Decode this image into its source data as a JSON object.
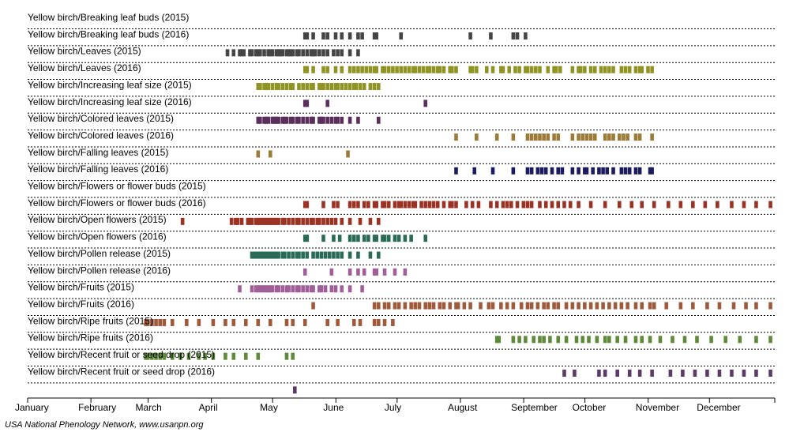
{
  "footer": "USA National Phenology Network, www.usanpn.org",
  "chart_data": {
    "type": "timeline",
    "x_unit": "day of year",
    "xlim": [
      1,
      366
    ],
    "months": [
      "January",
      "February",
      "March",
      "April",
      "May",
      "June",
      "July",
      "August",
      "September",
      "October",
      "November",
      "December"
    ],
    "rows": [
      {
        "label": "Yellow birch/Breaking leaf buds (2015)",
        "color": "#454545",
        "days": [
          136,
          137,
          140,
          145,
          147,
          151,
          154,
          158,
          162,
          164,
          170,
          171,
          183,
          217,
          227,
          238,
          240,
          244
        ]
      },
      {
        "label": "Yellow birch/Breaking leaf buds (2016)",
        "color": "#454545",
        "days": [
          98,
          101,
          104,
          105,
          106,
          109,
          110,
          112,
          113,
          114,
          116,
          118,
          119,
          120,
          122,
          123,
          124,
          125,
          127,
          128,
          129,
          130,
          132,
          133,
          135,
          137,
          139,
          140,
          141,
          143,
          145,
          147,
          150,
          152,
          154,
          158,
          162
        ]
      },
      {
        "label": "Yellow birch/Leaves (2015)",
        "color": "#8f9425",
        "days": [
          136,
          137,
          140,
          145,
          147,
          151,
          154,
          158,
          160,
          162,
          164,
          166,
          168,
          170,
          171,
          174,
          175,
          177,
          179,
          181,
          183,
          185,
          187,
          189,
          190,
          192,
          194,
          196,
          197,
          199,
          201,
          202,
          204,
          207,
          208,
          210,
          217,
          218,
          220,
          225,
          228,
          232,
          233,
          236,
          239,
          241,
          244,
          245,
          247,
          249,
          251,
          255,
          258,
          259,
          261,
          267,
          270,
          271,
          273,
          276,
          278,
          281,
          283,
          285,
          287,
          291,
          293,
          295,
          298,
          300,
          301,
          304,
          306
        ]
      },
      {
        "label": "Yellow birch/Leaves (2016)",
        "color": "#8f9425",
        "days": [
          113,
          114,
          116,
          117,
          118,
          120,
          122,
          123,
          125,
          127,
          129,
          130,
          133,
          135,
          137,
          139,
          140,
          143,
          144,
          145,
          147,
          149,
          151,
          152,
          154,
          156,
          158,
          160,
          161,
          163,
          165,
          168,
          170,
          172
        ]
      },
      {
        "label": "Yellow birch/Increasing leaf size (2015)",
        "color": "#5a2f5a",
        "days": [
          136,
          137,
          147,
          195
        ]
      },
      {
        "label": "Yellow birch/Increasing leaf size (2016)",
        "color": "#5a2f5a",
        "days": [
          113,
          114,
          116,
          117,
          118,
          120,
          121,
          122,
          123,
          125,
          126,
          127,
          129,
          130,
          132,
          133,
          135,
          137,
          139,
          140,
          143,
          144,
          145,
          147,
          149,
          151,
          152,
          154,
          158,
          162,
          172
        ]
      },
      {
        "label": "Yellow birch/Colored leaves (2015)",
        "color": "#9c7b38",
        "days": [
          210,
          220,
          230,
          238,
          245,
          247,
          249,
          251,
          253,
          255,
          258,
          260,
          267,
          270,
          272,
          274,
          276,
          278,
          283,
          285,
          287,
          290,
          292,
          294,
          298,
          300,
          306
        ]
      },
      {
        "label": "Yellow birch/Colored leaves (2016)",
        "color": "#9c7b38",
        "days": [
          113,
          119,
          157
        ]
      },
      {
        "label": "Yellow birch/Falling leaves (2015)",
        "color": "#1c1c5c",
        "days": [
          210,
          219,
          228,
          238,
          245,
          247,
          250,
          252,
          254,
          257,
          260,
          262,
          267,
          270,
          273,
          274,
          277,
          280,
          282,
          284,
          287,
          291,
          293,
          295,
          298,
          300,
          305,
          306
        ]
      },
      {
        "label": "Yellow birch/Falling leaves (2016)",
        "color": "#1c1c5c",
        "days": []
      },
      {
        "label": "Yellow birch/Flowers or flower buds (2015)",
        "color": "#9b3324",
        "days": [
          136,
          137,
          145,
          150,
          152,
          158,
          160,
          162,
          165,
          167,
          170,
          171,
          174,
          175,
          177,
          180,
          182,
          183,
          185,
          187,
          189,
          190,
          193,
          195,
          197,
          199,
          201,
          204,
          207,
          208,
          210,
          215,
          218,
          221,
          227,
          230,
          233,
          235,
          237,
          240,
          243,
          245,
          247,
          251,
          254,
          257,
          260,
          263,
          266,
          270,
          276,
          283,
          290,
          296,
          301,
          307,
          314,
          320,
          326,
          332,
          338,
          345,
          351,
          357,
          364
        ]
      },
      {
        "label": "Yellow birch/Flowers or flower buds (2016)",
        "color": "#9b3324",
        "days": [
          76,
          100,
          102,
          103,
          105,
          108,
          109,
          110,
          112,
          113,
          114,
          115,
          116,
          117,
          118,
          119,
          120,
          121,
          122,
          123,
          125,
          126,
          128,
          130,
          132,
          133,
          135,
          137,
          139,
          140,
          142,
          143,
          145,
          147,
          149,
          151,
          154,
          158,
          163,
          168,
          172
        ]
      },
      {
        "label": "Yellow birch/Open flowers (2015)",
        "color": "#2a6b57",
        "days": [
          136,
          137,
          145,
          150,
          153,
          158,
          160,
          162,
          165,
          167,
          170,
          171,
          174,
          175,
          177,
          180,
          182,
          185,
          188,
          195
        ]
      },
      {
        "label": "Yellow birch/Open flowers (2016)",
        "color": "#2a6b57",
        "days": [
          110,
          111,
          112,
          113,
          114,
          115,
          116,
          117,
          118,
          119,
          120,
          121,
          122,
          123,
          125,
          126,
          128,
          130,
          132,
          133,
          135,
          137,
          140,
          142,
          144,
          146,
          148,
          150,
          152,
          154,
          158,
          162,
          168,
          172
        ]
      },
      {
        "label": "Yellow birch/Pollen release (2015)",
        "color": "#a15f99",
        "days": [
          136,
          149,
          158,
          162,
          165,
          170,
          171,
          175,
          180,
          185
        ]
      },
      {
        "label": "Yellow birch/Pollen release (2016)",
        "color": "#a15f99",
        "days": [
          104,
          110,
          112,
          113,
          114,
          115,
          116,
          117,
          118,
          119,
          120,
          122,
          123,
          125,
          127,
          128,
          130,
          132,
          133,
          135,
          137,
          139,
          140,
          143,
          144,
          146,
          149,
          151,
          154,
          158,
          164
        ]
      },
      {
        "label": "Yellow birch/Fruits (2015)",
        "color": "#9f5a3c",
        "days": [
          140,
          170,
          172,
          175,
          177,
          180,
          182,
          185,
          188,
          190,
          192,
          195,
          197,
          199,
          202,
          204,
          207,
          210,
          211,
          214,
          217,
          222,
          226,
          228,
          232,
          235,
          238,
          242,
          245,
          247,
          250,
          253,
          255,
          258,
          260,
          264,
          267,
          270,
          273,
          276,
          279,
          282,
          285,
          288,
          291,
          294,
          298,
          301,
          305,
          307,
          313,
          320,
          326,
          333,
          339,
          346,
          352,
          357,
          364
        ]
      },
      {
        "label": "Yellow birch/Fruits (2016)",
        "color": "#9f5a3c",
        "days": [
          58,
          59,
          61,
          63,
          65,
          67,
          71,
          78,
          84,
          91,
          97,
          101,
          107,
          113,
          119,
          127,
          130,
          136,
          147,
          152,
          160,
          163,
          170,
          172,
          175,
          179
        ]
      },
      {
        "label": "Yellow birch/Ripe fruits (2015)",
        "color": "#5e8a3a",
        "days": [
          230,
          231,
          238,
          241,
          244,
          248,
          251,
          253,
          256,
          260,
          264,
          269,
          272,
          275,
          279,
          283,
          285,
          289,
          293,
          298,
          301,
          305,
          310,
          316,
          322,
          328,
          335,
          342,
          349,
          357,
          364
        ]
      },
      {
        "label": "Yellow birch/Ripe fruits (2016)",
        "color": "#5e8a3a",
        "days": [
          58,
          59,
          61,
          63,
          65,
          67,
          71,
          75,
          79,
          84,
          87,
          91,
          97,
          101,
          107,
          113,
          127,
          130
        ]
      },
      {
        "label": "Yellow birch/Recent fruit or seed drop (2015)",
        "color": "#5b3c66",
        "days": [
          263,
          268,
          280,
          283,
          289,
          295,
          300,
          306,
          315,
          321,
          327,
          333,
          339,
          345,
          351,
          357,
          364
        ]
      },
      {
        "label": "Yellow birch/Recent fruit or seed drop (2016)",
        "color": "#5b3c66",
        "days": [
          131
        ]
      }
    ]
  }
}
